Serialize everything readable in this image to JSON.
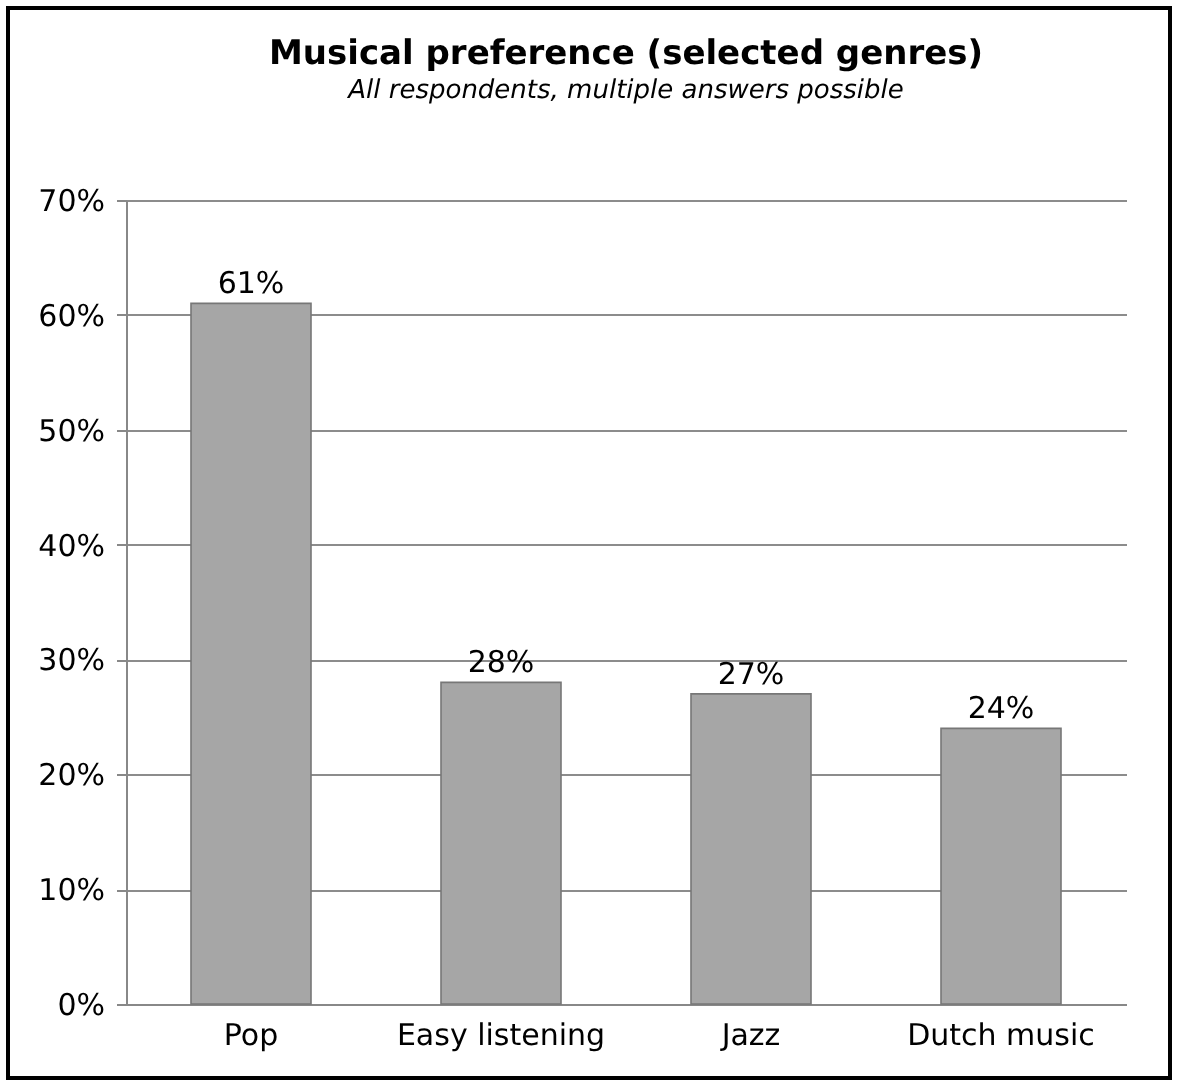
{
  "chart_data": {
    "type": "bar",
    "title": "Musical preference (selected genres)",
    "subtitle": "All respondents, multiple answers possible",
    "categories": [
      "Pop",
      "Easy listening",
      "Jazz",
      "Dutch music"
    ],
    "values": [
      61,
      28,
      27,
      24
    ],
    "value_labels": [
      "61%",
      "28%",
      "27%",
      "24%"
    ],
    "color": "#a6a6a6",
    "ylim": [
      0,
      70
    ],
    "yticks": [
      {
        "value": 0,
        "label": "0%"
      },
      {
        "value": 10,
        "label": "10%"
      },
      {
        "value": 20,
        "label": "20%"
      },
      {
        "value": 30,
        "label": "30%"
      },
      {
        "value": 40,
        "label": "40%"
      },
      {
        "value": 50,
        "label": "50%"
      },
      {
        "value": 60,
        "label": "60%"
      },
      {
        "value": 70,
        "label": "70%"
      }
    ],
    "grid": "y"
  }
}
